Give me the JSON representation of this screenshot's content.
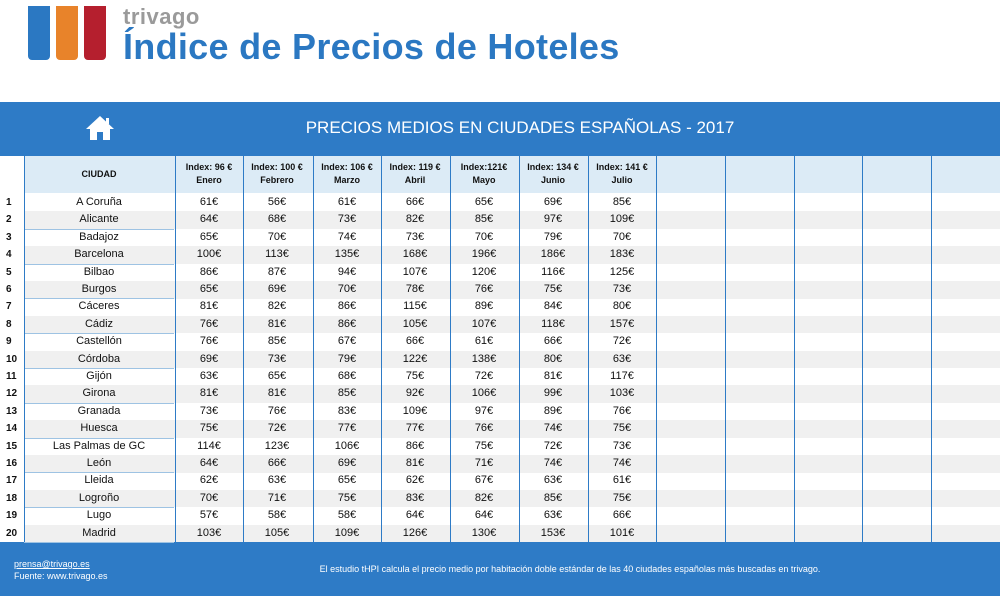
{
  "brand": {
    "name": "trivago",
    "title": "Índice de Precios de Hoteles",
    "colors": [
      "#2b78c2",
      "#e8832a",
      "#b51f2e"
    ]
  },
  "table": {
    "title": "PRECIOS MEDIOS EN CIUDADES ESPAÑOLAS - 2017",
    "city_header": "CIUDAD",
    "columns": [
      {
        "index": "Index: 96 €",
        "month": "Enero"
      },
      {
        "index": "Index: 100 €",
        "month": "Febrero"
      },
      {
        "index": "Index: 106 €",
        "month": "Marzo"
      },
      {
        "index": "Index: 119 €",
        "month": "Abril"
      },
      {
        "index": "Index:121€",
        "month": "Mayo"
      },
      {
        "index": "Index: 134 €",
        "month": "Junio"
      },
      {
        "index": "Index: 141 €",
        "month": "Julio"
      }
    ],
    "rows": [
      {
        "n": "1",
        "city": "A Coruña",
        "v": [
          "61€",
          "56€",
          "61€",
          "66€",
          "65€",
          "69€",
          "85€"
        ]
      },
      {
        "n": "2",
        "city": "Alicante",
        "v": [
          "64€",
          "68€",
          "73€",
          "82€",
          "85€",
          "97€",
          "109€"
        ]
      },
      {
        "n": "3",
        "city": "Badajoz",
        "v": [
          "65€",
          "70€",
          "74€",
          "73€",
          "70€",
          "79€",
          "70€"
        ]
      },
      {
        "n": "4",
        "city": "Barcelona",
        "v": [
          "100€",
          "113€",
          "135€",
          "168€",
          "196€",
          "186€",
          "183€"
        ]
      },
      {
        "n": "5",
        "city": "Bilbao",
        "v": [
          "86€",
          "87€",
          "94€",
          "107€",
          "120€",
          "116€",
          "125€"
        ]
      },
      {
        "n": "6",
        "city": "Burgos",
        "v": [
          "65€",
          "69€",
          "70€",
          "78€",
          "76€",
          "75€",
          "73€"
        ]
      },
      {
        "n": "7",
        "city": "Cáceres",
        "v": [
          "81€",
          "82€",
          "86€",
          "115€",
          "89€",
          "84€",
          "80€"
        ]
      },
      {
        "n": "8",
        "city": "Cádiz",
        "v": [
          "76€",
          "81€",
          "86€",
          "105€",
          "107€",
          "118€",
          "157€"
        ]
      },
      {
        "n": "9",
        "city": "Castellón",
        "v": [
          "76€",
          "85€",
          "67€",
          "66€",
          "61€",
          "66€",
          "72€"
        ]
      },
      {
        "n": "10",
        "city": "Córdoba",
        "v": [
          "69€",
          "73€",
          "79€",
          "122€",
          "138€",
          "80€",
          "63€"
        ]
      },
      {
        "n": "11",
        "city": "Gijón",
        "v": [
          "63€",
          "65€",
          "68€",
          "75€",
          "72€",
          "81€",
          "117€"
        ]
      },
      {
        "n": "12",
        "city": "Girona",
        "v": [
          "81€",
          "81€",
          "85€",
          "92€",
          "106€",
          "99€",
          "103€"
        ]
      },
      {
        "n": "13",
        "city": "Granada",
        "v": [
          "73€",
          "76€",
          "83€",
          "109€",
          "97€",
          "89€",
          "76€"
        ]
      },
      {
        "n": "14",
        "city": "Huesca",
        "v": [
          "75€",
          "72€",
          "77€",
          "77€",
          "76€",
          "74€",
          "75€"
        ]
      },
      {
        "n": "15",
        "city": "Las Palmas de GC",
        "v": [
          "114€",
          "123€",
          "106€",
          "86€",
          "75€",
          "72€",
          "73€"
        ]
      },
      {
        "n": "16",
        "city": "León",
        "v": [
          "64€",
          "66€",
          "69€",
          "81€",
          "71€",
          "74€",
          "74€"
        ]
      },
      {
        "n": "17",
        "city": "Lleida",
        "v": [
          "62€",
          "63€",
          "65€",
          "62€",
          "67€",
          "63€",
          "61€"
        ]
      },
      {
        "n": "18",
        "city": "Logroño",
        "v": [
          "70€",
          "71€",
          "75€",
          "83€",
          "82€",
          "85€",
          "75€"
        ]
      },
      {
        "n": "19",
        "city": "Lugo",
        "v": [
          "57€",
          "58€",
          "58€",
          "64€",
          "64€",
          "63€",
          "66€"
        ]
      },
      {
        "n": "20",
        "city": "Madrid",
        "v": [
          "103€",
          "105€",
          "109€",
          "126€",
          "130€",
          "153€",
          "101€"
        ]
      }
    ]
  },
  "footer": {
    "email": "prensa@trivago.es",
    "source": "Fuente: www.trivago.es",
    "note": "El estudio tHPI calcula el precio medio por habitación doble estándar de las 40 ciudades españolas más buscadas en trivago."
  }
}
